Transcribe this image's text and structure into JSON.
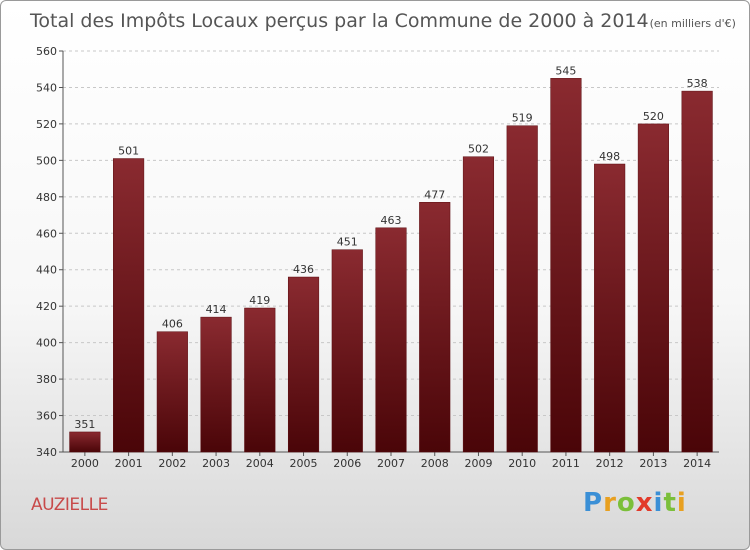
{
  "chart_data": {
    "type": "bar",
    "title": "Total des Impôts Locaux perçus par la Commune de 2000 à 2014",
    "unit": "(en milliers d'€)",
    "categories": [
      "2000",
      "2001",
      "2002",
      "2003",
      "2004",
      "2005",
      "2006",
      "2007",
      "2008",
      "2009",
      "2010",
      "2011",
      "2012",
      "2013",
      "2014"
    ],
    "values": [
      351,
      501,
      406,
      414,
      419,
      436,
      451,
      463,
      477,
      502,
      519,
      545,
      498,
      520,
      538
    ],
    "ylim": [
      340,
      560
    ],
    "yticks": [
      340,
      360,
      380,
      400,
      420,
      440,
      460,
      480,
      500,
      520,
      540,
      560
    ],
    "grid": true,
    "bar_color": "#7a1c20",
    "xlabel": "",
    "ylabel": ""
  },
  "commune": "AUZIELLE",
  "logo": {
    "letters": [
      "P",
      "r",
      "o",
      "x",
      "i",
      "t",
      "i"
    ],
    "colors": [
      "#3a8fd6",
      "#e8a020",
      "#7bbf3a",
      "#e23a2a",
      "#3a8fd6",
      "#7bbf3a",
      "#e8a020"
    ]
  }
}
